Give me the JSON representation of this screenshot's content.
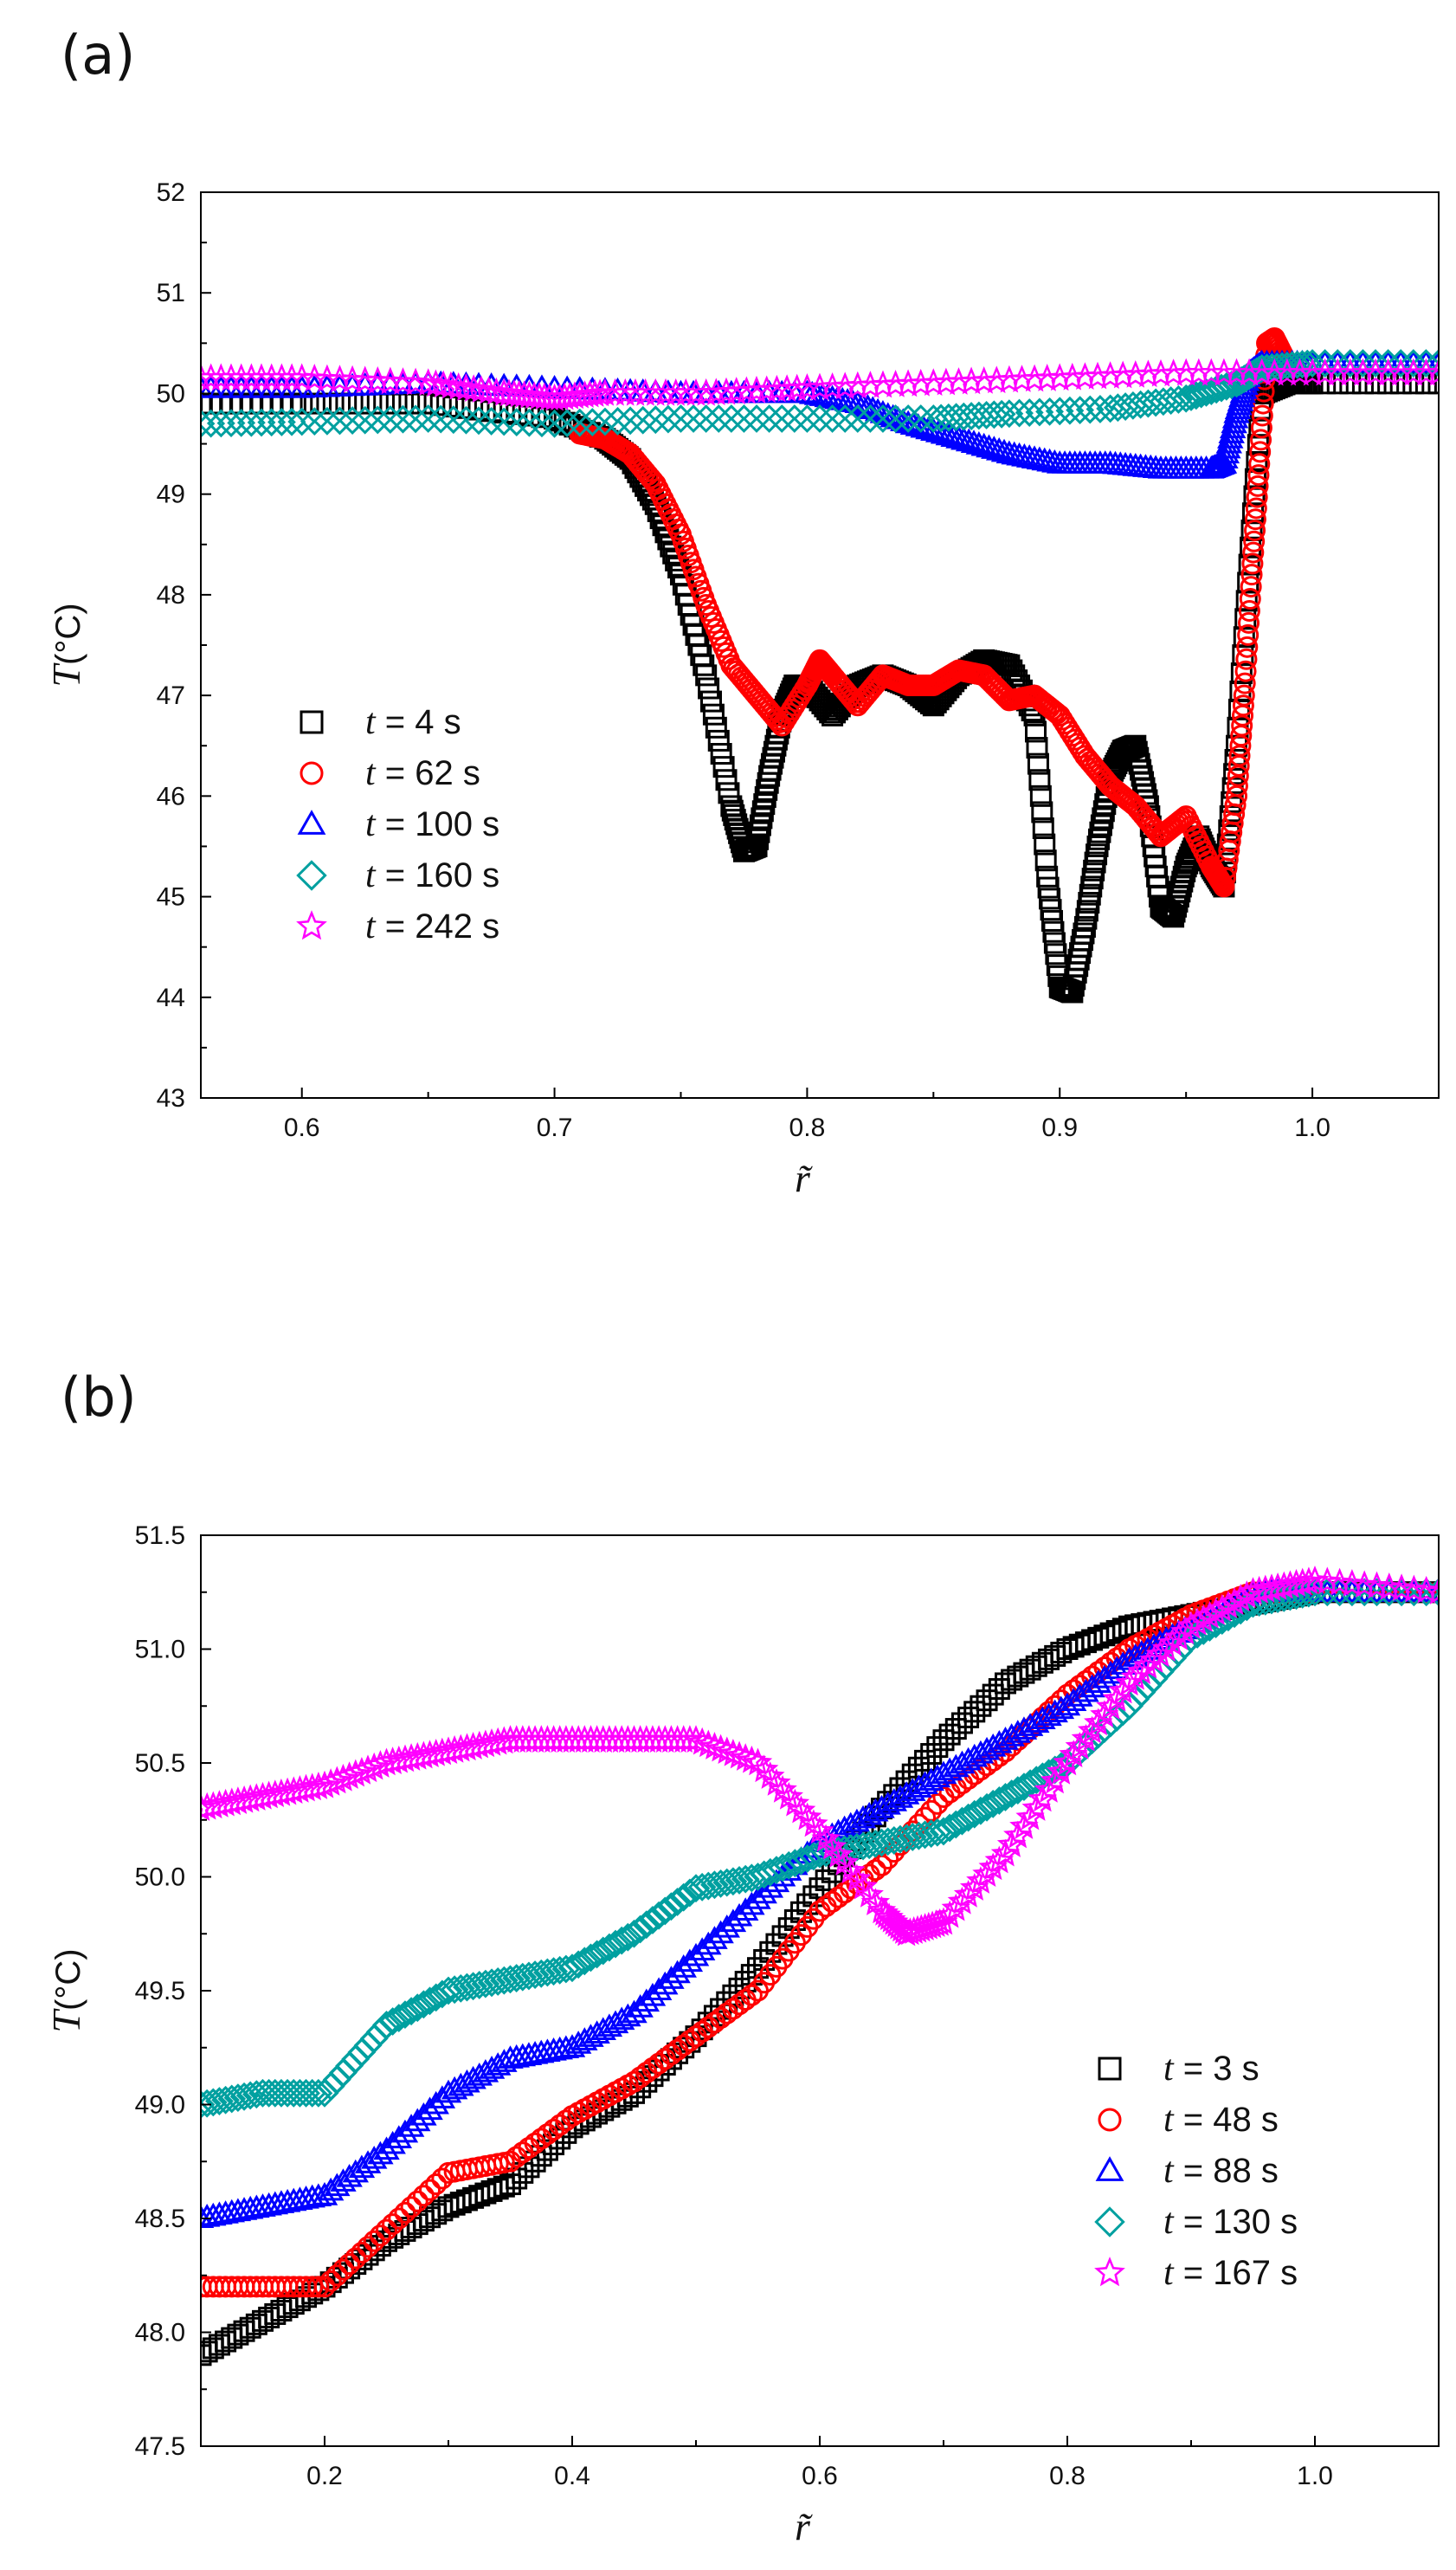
{
  "chart_data": [
    {
      "id": "a",
      "type": "scatter",
      "panel_label": "(a)",
      "xlabel": "r̃",
      "ylabel": "T",
      "ylabel_unit": "(°C)",
      "xlim": [
        0.56,
        1.05
      ],
      "ylim": [
        43,
        52
      ],
      "xticks": [
        0.6,
        0.7,
        0.8,
        0.9,
        1.0
      ],
      "xtick_labels": [
        "0.6",
        "0.7",
        "0.8",
        "0.9",
        "1.0"
      ],
      "yticks": [
        43,
        44,
        45,
        46,
        47,
        48,
        49,
        50,
        51,
        52
      ],
      "ytick_labels": [
        "43",
        "44",
        "45",
        "46",
        "47",
        "48",
        "49",
        "50",
        "51",
        "52"
      ],
      "legend_position": "lower-left",
      "series": [
        {
          "name": "t = 4 s",
          "var": "t",
          "label_rest": " = 4 s",
          "marker": "square",
          "color": "#000000",
          "points": [
            [
              0.56,
              49.9
            ],
            [
              0.6,
              49.9
            ],
            [
              0.65,
              49.9
            ],
            [
              0.7,
              49.75
            ],
            [
              0.72,
              49.55
            ],
            [
              0.73,
              49.35
            ],
            [
              0.74,
              48.9
            ],
            [
              0.75,
              48.2
            ],
            [
              0.76,
              47.2
            ],
            [
              0.77,
              45.9
            ],
            [
              0.775,
              45.45
            ],
            [
              0.78,
              45.5
            ],
            [
              0.785,
              46.2
            ],
            [
              0.79,
              46.8
            ],
            [
              0.795,
              47.1
            ],
            [
              0.8,
              47.1
            ],
            [
              0.81,
              46.8
            ],
            [
              0.82,
              47.1
            ],
            [
              0.83,
              47.2
            ],
            [
              0.84,
              47.1
            ],
            [
              0.85,
              46.9
            ],
            [
              0.86,
              47.2
            ],
            [
              0.87,
              47.35
            ],
            [
              0.88,
              47.3
            ],
            [
              0.89,
              46.8
            ],
            [
              0.895,
              45.2
            ],
            [
              0.9,
              44.1
            ],
            [
              0.905,
              44.05
            ],
            [
              0.91,
              44.7
            ],
            [
              0.915,
              45.5
            ],
            [
              0.92,
              46.2
            ],
            [
              0.925,
              46.45
            ],
            [
              0.93,
              46.5
            ],
            [
              0.935,
              45.9
            ],
            [
              0.94,
              44.9
            ],
            [
              0.945,
              44.8
            ],
            [
              0.95,
              45.3
            ],
            [
              0.955,
              45.6
            ],
            [
              0.96,
              45.3
            ],
            [
              0.965,
              45.1
            ],
            [
              0.97,
              46.5
            ],
            [
              0.975,
              48.3
            ],
            [
              0.98,
              50.0
            ],
            [
              0.99,
              50.1
            ],
            [
              1.0,
              50.1
            ],
            [
              1.05,
              50.1
            ]
          ]
        },
        {
          "name": "t = 62 s",
          "var": "t",
          "label_rest": " = 62 s",
          "marker": "circle",
          "color": "#ff0000",
          "points": [
            [
              0.71,
              49.6
            ],
            [
              0.72,
              49.55
            ],
            [
              0.73,
              49.4
            ],
            [
              0.74,
              49.1
            ],
            [
              0.75,
              48.6
            ],
            [
              0.76,
              47.9
            ],
            [
              0.77,
              47.3
            ],
            [
              0.78,
              47.0
            ],
            [
              0.79,
              46.7
            ],
            [
              0.8,
              47.1
            ],
            [
              0.805,
              47.35
            ],
            [
              0.81,
              47.2
            ],
            [
              0.82,
              46.9
            ],
            [
              0.83,
              47.2
            ],
            [
              0.84,
              47.1
            ],
            [
              0.85,
              47.1
            ],
            [
              0.86,
              47.25
            ],
            [
              0.87,
              47.2
            ],
            [
              0.88,
              46.95
            ],
            [
              0.89,
              47.0
            ],
            [
              0.9,
              46.8
            ],
            [
              0.91,
              46.4
            ],
            [
              0.92,
              46.1
            ],
            [
              0.93,
              45.9
            ],
            [
              0.94,
              45.6
            ],
            [
              0.95,
              45.8
            ],
            [
              0.96,
              45.3
            ],
            [
              0.965,
              45.1
            ],
            [
              0.97,
              46.0
            ],
            [
              0.973,
              47.0
            ],
            [
              0.976,
              48.2
            ],
            [
              0.979,
              49.3
            ],
            [
              0.982,
              50.5
            ],
            [
              0.985,
              50.55
            ],
            [
              0.99,
              50.3
            ]
          ]
        },
        {
          "name": "t = 100 s",
          "var": "t",
          "label_rest": " = 100 s",
          "marker": "triangle",
          "color": "#0000ff",
          "points": [
            [
              0.56,
              50.05
            ],
            [
              0.6,
              50.05
            ],
            [
              0.65,
              50.1
            ],
            [
              0.7,
              50.05
            ],
            [
              0.75,
              50.0
            ],
            [
              0.8,
              50.0
            ],
            [
              0.82,
              49.9
            ],
            [
              0.84,
              49.7
            ],
            [
              0.86,
              49.55
            ],
            [
              0.88,
              49.4
            ],
            [
              0.9,
              49.3
            ],
            [
              0.92,
              49.3
            ],
            [
              0.94,
              49.25
            ],
            [
              0.96,
              49.25
            ],
            [
              0.965,
              49.3
            ],
            [
              0.97,
              49.8
            ],
            [
              0.975,
              50.2
            ],
            [
              0.98,
              50.3
            ],
            [
              1.0,
              50.3
            ],
            [
              1.05,
              50.3
            ]
          ]
        },
        {
          "name": "t = 160 s",
          "var": "t",
          "label_rest": " = 160 s",
          "marker": "diamond",
          "color": "#00a0a0",
          "points": [
            [
              0.56,
              49.7
            ],
            [
              0.6,
              49.72
            ],
            [
              0.65,
              49.75
            ],
            [
              0.7,
              49.7
            ],
            [
              0.75,
              49.75
            ],
            [
              0.8,
              49.75
            ],
            [
              0.85,
              49.75
            ],
            [
              0.88,
              49.8
            ],
            [
              0.92,
              49.85
            ],
            [
              0.95,
              49.95
            ],
            [
              0.97,
              50.1
            ],
            [
              0.98,
              50.25
            ],
            [
              1.0,
              50.3
            ],
            [
              1.05,
              50.3
            ]
          ]
        },
        {
          "name": "t = 242 s",
          "var": "t",
          "label_rest": " = 242 s",
          "marker": "star",
          "color": "#ff00ff",
          "points": [
            [
              0.56,
              50.15
            ],
            [
              0.6,
              50.15
            ],
            [
              0.65,
              50.1
            ],
            [
              0.68,
              50.0
            ],
            [
              0.7,
              49.95
            ],
            [
              0.72,
              50.0
            ],
            [
              0.76,
              50.0
            ],
            [
              0.8,
              50.05
            ],
            [
              0.85,
              50.1
            ],
            [
              0.9,
              50.15
            ],
            [
              0.95,
              50.2
            ],
            [
              1.0,
              50.2
            ],
            [
              1.05,
              50.2
            ]
          ]
        }
      ]
    },
    {
      "id": "b",
      "type": "scatter",
      "panel_label": "(b)",
      "xlabel": "r̃",
      "ylabel": "T",
      "ylabel_unit": "(°C)",
      "xlim": [
        0.1,
        1.1
      ],
      "ylim": [
        47.5,
        51.5
      ],
      "xticks": [
        0.2,
        0.4,
        0.6,
        0.8,
        1.0
      ],
      "xtick_labels": [
        "0.2",
        "0.4",
        "0.6",
        "0.8",
        "1.0"
      ],
      "yticks": [
        47.5,
        48.0,
        48.5,
        49.0,
        49.5,
        50.0,
        50.5,
        51.0,
        51.5
      ],
      "ytick_labels": [
        "47.5",
        "48.0",
        "48.5",
        "49.0",
        "49.5",
        "50.0",
        "50.5",
        "51.0",
        "51.5"
      ],
      "legend_position": "lower-right",
      "series": [
        {
          "name": "t = 3 s",
          "var": "t",
          "label_rest": " = 3 s",
          "marker": "square",
          "color": "#000000",
          "points": [
            [
              0.1,
              47.9
            ],
            [
              0.15,
              48.05
            ],
            [
              0.2,
              48.2
            ],
            [
              0.25,
              48.4
            ],
            [
              0.3,
              48.55
            ],
            [
              0.35,
              48.65
            ],
            [
              0.4,
              48.9
            ],
            [
              0.45,
              49.05
            ],
            [
              0.5,
              49.3
            ],
            [
              0.55,
              49.6
            ],
            [
              0.6,
              49.95
            ],
            [
              0.65,
              50.3
            ],
            [
              0.7,
              50.6
            ],
            [
              0.75,
              50.85
            ],
            [
              0.8,
              51.0
            ],
            [
              0.85,
              51.1
            ],
            [
              0.9,
              51.15
            ],
            [
              0.95,
              51.2
            ],
            [
              1.0,
              51.25
            ],
            [
              1.1,
              51.25
            ]
          ]
        },
        {
          "name": "t = 48 s",
          "var": "t",
          "label_rest": " = 48 s",
          "marker": "circle",
          "color": "#ff0000",
          "points": [
            [
              0.1,
              48.2
            ],
            [
              0.15,
              48.2
            ],
            [
              0.2,
              48.2
            ],
            [
              0.25,
              48.45
            ],
            [
              0.3,
              48.7
            ],
            [
              0.35,
              48.75
            ],
            [
              0.4,
              48.95
            ],
            [
              0.45,
              49.1
            ],
            [
              0.5,
              49.3
            ],
            [
              0.55,
              49.5
            ],
            [
              0.6,
              49.85
            ],
            [
              0.65,
              50.05
            ],
            [
              0.7,
              50.35
            ],
            [
              0.75,
              50.55
            ],
            [
              0.8,
              50.8
            ],
            [
              0.85,
              51.0
            ],
            [
              0.9,
              51.15
            ],
            [
              0.95,
              51.25
            ],
            [
              1.0,
              51.25
            ],
            [
              1.1,
              51.25
            ]
          ]
        },
        {
          "name": "t = 88 s",
          "var": "t",
          "label_rest": " = 88 s",
          "marker": "triangle",
          "color": "#0000ff",
          "points": [
            [
              0.1,
              48.5
            ],
            [
              0.15,
              48.55
            ],
            [
              0.2,
              48.6
            ],
            [
              0.25,
              48.8
            ],
            [
              0.3,
              49.05
            ],
            [
              0.35,
              49.2
            ],
            [
              0.4,
              49.25
            ],
            [
              0.45,
              49.4
            ],
            [
              0.5,
              49.65
            ],
            [
              0.55,
              49.9
            ],
            [
              0.6,
              50.15
            ],
            [
              0.65,
              50.3
            ],
            [
              0.7,
              50.45
            ],
            [
              0.75,
              50.6
            ],
            [
              0.8,
              50.75
            ],
            [
              0.85,
              50.95
            ],
            [
              0.9,
              51.1
            ],
            [
              0.95,
              51.25
            ],
            [
              1.0,
              51.25
            ],
            [
              1.1,
              51.25
            ]
          ]
        },
        {
          "name": "t = 130 s",
          "var": "t",
          "label_rest": " = 130 s",
          "marker": "diamond",
          "color": "#00a0a0",
          "points": [
            [
              0.1,
              49.0
            ],
            [
              0.15,
              49.05
            ],
            [
              0.2,
              49.05
            ],
            [
              0.25,
              49.35
            ],
            [
              0.3,
              49.5
            ],
            [
              0.35,
              49.55
            ],
            [
              0.4,
              49.6
            ],
            [
              0.45,
              49.75
            ],
            [
              0.5,
              49.95
            ],
            [
              0.55,
              50.0
            ],
            [
              0.6,
              50.1
            ],
            [
              0.65,
              50.15
            ],
            [
              0.7,
              50.2
            ],
            [
              0.75,
              50.35
            ],
            [
              0.8,
              50.5
            ],
            [
              0.85,
              50.75
            ],
            [
              0.9,
              51.05
            ],
            [
              0.95,
              51.2
            ],
            [
              1.0,
              51.25
            ],
            [
              1.1,
              51.25
            ]
          ]
        },
        {
          "name": "t = 167 s",
          "var": "t",
          "label_rest": " = 167 s",
          "marker": "star",
          "color": "#ff00ff",
          "points": [
            [
              0.1,
              50.3
            ],
            [
              0.15,
              50.35
            ],
            [
              0.2,
              50.4
            ],
            [
              0.25,
              50.5
            ],
            [
              0.3,
              50.55
            ],
            [
              0.35,
              50.6
            ],
            [
              0.4,
              50.6
            ],
            [
              0.45,
              50.6
            ],
            [
              0.5,
              50.6
            ],
            [
              0.55,
              50.5
            ],
            [
              0.6,
              50.2
            ],
            [
              0.65,
              49.85
            ],
            [
              0.67,
              49.75
            ],
            [
              0.7,
              49.8
            ],
            [
              0.75,
              50.1
            ],
            [
              0.8,
              50.5
            ],
            [
              0.85,
              50.85
            ],
            [
              0.9,
              51.1
            ],
            [
              0.95,
              51.25
            ],
            [
              1.0,
              51.3
            ],
            [
              1.1,
              51.25
            ]
          ]
        }
      ]
    }
  ]
}
